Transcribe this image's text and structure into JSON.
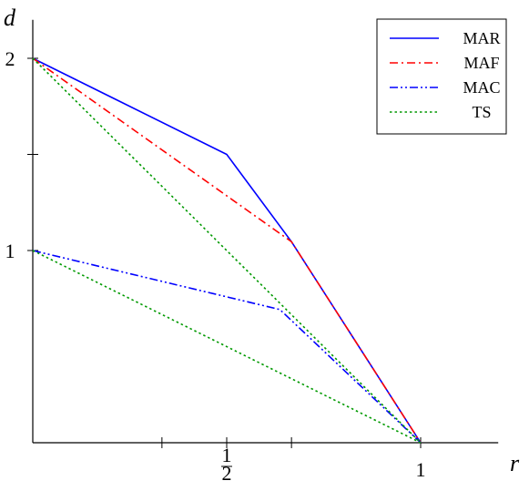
{
  "chart_data": {
    "type": "line",
    "title": "",
    "xlabel": "r",
    "ylabel": "d",
    "xlim": [
      0,
      1.2
    ],
    "ylim": [
      0,
      2.2
    ],
    "grid": false,
    "legend_position": "top-right",
    "x_ticks": [
      0.333,
      0.5,
      0.667,
      1
    ],
    "x_tick_labels": [
      {
        "x": 0.5,
        "num": "1",
        "den": "2"
      },
      {
        "x": 1,
        "text": "1"
      }
    ],
    "y_ticks": [
      1,
      1.5,
      2
    ],
    "y_tick_labels": [
      {
        "y": 1,
        "text": "1"
      },
      {
        "y": 2,
        "text": "2"
      }
    ],
    "series": [
      {
        "name": "MAR",
        "color": "#0000ff",
        "dash": "solid",
        "segments": [
          {
            "x": [
              0,
              0.5,
              0.667,
              1
            ],
            "y": [
              2,
              1.5,
              1.046,
              0
            ]
          }
        ]
      },
      {
        "name": "MAF",
        "color": "#ff0000",
        "dash": "dash-dot",
        "segments": [
          {
            "x": [
              0,
              0.667,
              1
            ],
            "y": [
              2,
              1.046,
              0
            ]
          }
        ]
      },
      {
        "name": "MAC",
        "color": "#0000ff",
        "dash": "dash-dot-dot",
        "segments": [
          {
            "x": [
              0,
              0.637,
              1
            ],
            "y": [
              1,
              0.693,
              0
            ]
          }
        ]
      },
      {
        "name": "TS",
        "color": "#009900",
        "dash": "dotted",
        "segments": [
          {
            "x": [
              0,
              1
            ],
            "y": [
              2,
              0
            ]
          },
          {
            "x": [
              0,
              1
            ],
            "y": [
              1,
              0
            ]
          }
        ]
      }
    ]
  }
}
